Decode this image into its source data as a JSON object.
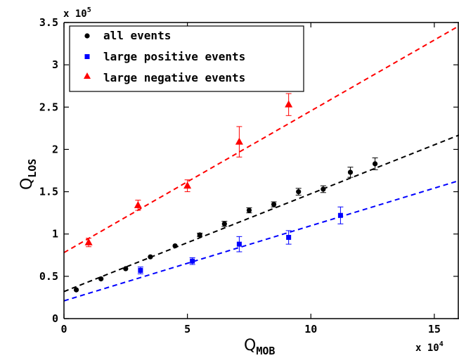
{
  "chart_data": {
    "type": "scatter",
    "xlabel": {
      "main": "Q",
      "sub": "MOB"
    },
    "ylabel": {
      "main": "Q",
      "sub": "LOS"
    },
    "x_multiplier": {
      "base": "x 10",
      "exp": "4"
    },
    "y_multiplier": {
      "base": "x 10",
      "exp": "5"
    },
    "xlim": [
      0,
      16
    ],
    "ylim": [
      0,
      3.5
    ],
    "x_ticks": [
      {
        "value": 0,
        "label": "0"
      },
      {
        "value": 5,
        "label": "5"
      },
      {
        "value": 10,
        "label": "10"
      },
      {
        "value": 15,
        "label": "15"
      }
    ],
    "y_ticks": [
      {
        "value": 0,
        "label": "0"
      },
      {
        "value": 0.5,
        "label": "0.5"
      },
      {
        "value": 1,
        "label": "1"
      },
      {
        "value": 1.5,
        "label": "1.5"
      },
      {
        "value": 2,
        "label": "2"
      },
      {
        "value": 2.5,
        "label": "2.5"
      },
      {
        "value": 3,
        "label": "3"
      },
      {
        "value": 3.5,
        "label": "3.5"
      }
    ],
    "grid": false,
    "legend_position": "top-left",
    "series": [
      {
        "name": "all events",
        "color": "#000000",
        "marker": "circle",
        "points": [
          {
            "x": 0.5,
            "y": 0.34,
            "err": 0.0
          },
          {
            "x": 1.5,
            "y": 0.47,
            "err": 0.0
          },
          {
            "x": 2.5,
            "y": 0.59,
            "err": 0.0
          },
          {
            "x": 3.5,
            "y": 0.73,
            "err": 0.0
          },
          {
            "x": 4.5,
            "y": 0.86,
            "err": 0.0
          },
          {
            "x": 5.5,
            "y": 0.99,
            "err": 0.02
          },
          {
            "x": 6.5,
            "y": 1.12,
            "err": 0.03
          },
          {
            "x": 7.5,
            "y": 1.28,
            "err": 0.03
          },
          {
            "x": 8.5,
            "y": 1.35,
            "err": 0.03
          },
          {
            "x": 9.5,
            "y": 1.5,
            "err": 0.04
          },
          {
            "x": 10.5,
            "y": 1.53,
            "err": 0.04
          },
          {
            "x": 11.6,
            "y": 1.73,
            "err": 0.06
          },
          {
            "x": 12.6,
            "y": 1.83,
            "err": 0.07
          }
        ],
        "fit": {
          "intercept": 0.32,
          "slope": 0.1156
        }
      },
      {
        "name": "large positive events",
        "color": "#0000ff",
        "marker": "square",
        "points": [
          {
            "x": 3.1,
            "y": 0.57,
            "err": 0.04
          },
          {
            "x": 5.2,
            "y": 0.68,
            "err": 0.04
          },
          {
            "x": 7.1,
            "y": 0.88,
            "err": 0.09
          },
          {
            "x": 9.1,
            "y": 0.96,
            "err": 0.08
          },
          {
            "x": 11.2,
            "y": 1.22,
            "err": 0.1
          }
        ],
        "fit": {
          "intercept": 0.21,
          "slope": 0.0888
        }
      },
      {
        "name": "large negative events",
        "color": "#ff0000",
        "marker": "triangle",
        "points": [
          {
            "x": 1.0,
            "y": 0.9,
            "err": 0.05
          },
          {
            "x": 3.0,
            "y": 1.34,
            "err": 0.06
          },
          {
            "x": 5.0,
            "y": 1.57,
            "err": 0.07
          },
          {
            "x": 7.1,
            "y": 2.09,
            "err": 0.18
          },
          {
            "x": 9.1,
            "y": 2.53,
            "err": 0.13
          }
        ],
        "fit": {
          "intercept": 0.78,
          "slope": 0.1675
        }
      }
    ]
  }
}
